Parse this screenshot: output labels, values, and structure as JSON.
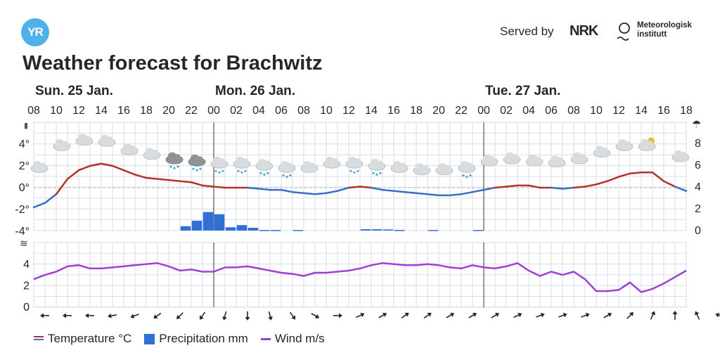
{
  "header": {
    "logo_text": "YR",
    "served_by": "Served by",
    "nrk_logo": "NRK",
    "met_line1": "Meteorologisk",
    "met_line2": "institutt",
    "title": "Weather forecast for Brachwitz"
  },
  "legend": {
    "temperature": "Temperature °C",
    "precipitation": "Precipitation mm",
    "wind": "Wind m/s"
  },
  "colors": {
    "temp_above": "#b5322c",
    "temp_below": "#3a6fc4",
    "precip": "#2f6fd6",
    "wind": "#a03fd6",
    "grid": "#d6dde2",
    "yr_blue": "#4fb1ea"
  },
  "chart_data": {
    "type": "line",
    "days": [
      {
        "label": "Sun. 25 Jan.",
        "start_hour": 8
      },
      {
        "label": "Mon. 26 Jan.",
        "start_hour": 24
      },
      {
        "label": "Tue. 27 Jan.",
        "start_hour": 48
      }
    ],
    "hour_tick_labels": [
      "08",
      "10",
      "12",
      "14",
      "16",
      "18",
      "20",
      "22",
      "00",
      "02",
      "04",
      "06",
      "08",
      "10",
      "12",
      "14",
      "16",
      "18",
      "20",
      "22",
      "00",
      "02",
      "04",
      "06",
      "08",
      "10",
      "12",
      "14",
      "16",
      "18"
    ],
    "x_hours_range": [
      8,
      66
    ],
    "temperature": {
      "unit": "°C",
      "ylim": [
        -4,
        10
      ],
      "y_ticks": [
        "4°",
        "2°",
        "0°",
        "-2°",
        "-4°"
      ],
      "points": [
        [
          8,
          -1.8
        ],
        [
          9,
          -1.4
        ],
        [
          10,
          -0.6
        ],
        [
          11,
          0.8
        ],
        [
          12,
          1.6
        ],
        [
          13,
          2.0
        ],
        [
          14,
          2.2
        ],
        [
          15,
          2.0
        ],
        [
          16,
          1.6
        ],
        [
          17,
          1.2
        ],
        [
          18,
          0.9
        ],
        [
          19,
          0.8
        ],
        [
          20,
          0.7
        ],
        [
          21,
          0.6
        ],
        [
          22,
          0.5
        ],
        [
          23,
          0.2
        ],
        [
          24,
          0.1
        ],
        [
          25,
          0.0
        ],
        [
          26,
          0.0
        ],
        [
          27,
          0.0
        ],
        [
          28,
          -0.1
        ],
        [
          29,
          -0.2
        ],
        [
          30,
          -0.2
        ],
        [
          31,
          -0.4
        ],
        [
          32,
          -0.5
        ],
        [
          33,
          -0.6
        ],
        [
          34,
          -0.5
        ],
        [
          35,
          -0.3
        ],
        [
          36,
          0.0
        ],
        [
          37,
          0.1
        ],
        [
          38,
          0.0
        ],
        [
          39,
          -0.2
        ],
        [
          40,
          -0.3
        ],
        [
          41,
          -0.4
        ],
        [
          42,
          -0.5
        ],
        [
          43,
          -0.6
        ],
        [
          44,
          -0.7
        ],
        [
          45,
          -0.7
        ],
        [
          46,
          -0.6
        ],
        [
          47,
          -0.4
        ],
        [
          48,
          -0.2
        ],
        [
          49,
          0.0
        ],
        [
          50,
          0.1
        ],
        [
          51,
          0.2
        ],
        [
          52,
          0.2
        ],
        [
          53,
          0.0
        ],
        [
          54,
          0.0
        ],
        [
          55,
          -0.1
        ],
        [
          56,
          0.0
        ],
        [
          57,
          0.1
        ],
        [
          58,
          0.3
        ],
        [
          59,
          0.6
        ],
        [
          60,
          1.0
        ],
        [
          61,
          1.3
        ],
        [
          62,
          1.4
        ],
        [
          63,
          1.4
        ],
        [
          64,
          0.6
        ],
        [
          65,
          0.1
        ],
        [
          66,
          -0.3
        ]
      ],
      "weather_icons": [
        {
          "hour": 8.5,
          "kind": "cloud",
          "temp": 1.0
        },
        {
          "hour": 10.5,
          "kind": "cloud",
          "temp": 3.0
        },
        {
          "hour": 12.5,
          "kind": "cloud",
          "temp": 3.5
        },
        {
          "hour": 14.5,
          "kind": "cloud",
          "temp": 3.4
        },
        {
          "hour": 16.5,
          "kind": "cloud",
          "temp": 2.6
        },
        {
          "hour": 18.5,
          "kind": "cloud",
          "temp": 2.2
        },
        {
          "hour": 20.5,
          "kind": "cloud-sleet",
          "temp": 1.8
        },
        {
          "hour": 22.5,
          "kind": "cloud-sleet",
          "temp": 1.6
        },
        {
          "hour": 24.5,
          "kind": "cloud-snow",
          "temp": 1.4
        },
        {
          "hour": 26.5,
          "kind": "cloud-snow",
          "temp": 1.4
        },
        {
          "hour": 28.5,
          "kind": "cloud-snow",
          "temp": 1.2
        },
        {
          "hour": 30.5,
          "kind": "cloud-snow",
          "temp": 1.0
        },
        {
          "hour": 32.5,
          "kind": "cloud",
          "temp": 1.0
        },
        {
          "hour": 34.5,
          "kind": "cloud",
          "temp": 1.4
        },
        {
          "hour": 36.5,
          "kind": "cloud-snow",
          "temp": 1.4
        },
        {
          "hour": 38.5,
          "kind": "cloud-snow",
          "temp": 1.2
        },
        {
          "hour": 40.5,
          "kind": "cloud",
          "temp": 1.0
        },
        {
          "hour": 42.5,
          "kind": "cloud",
          "temp": 0.8
        },
        {
          "hour": 44.5,
          "kind": "cloud",
          "temp": 0.8
        },
        {
          "hour": 46.5,
          "kind": "cloud-snow",
          "temp": 1.0
        },
        {
          "hour": 48.5,
          "kind": "cloud",
          "temp": 1.6
        },
        {
          "hour": 50.5,
          "kind": "cloud",
          "temp": 1.8
        },
        {
          "hour": 52.5,
          "kind": "cloud",
          "temp": 1.6
        },
        {
          "hour": 54.5,
          "kind": "cloud",
          "temp": 1.5
        },
        {
          "hour": 56.5,
          "kind": "cloud",
          "temp": 1.8
        },
        {
          "hour": 58.5,
          "kind": "cloud",
          "temp": 2.4
        },
        {
          "hour": 60.5,
          "kind": "cloud",
          "temp": 3.0
        },
        {
          "hour": 62.5,
          "kind": "cloud-sun",
          "temp": 3.0
        },
        {
          "hour": 65.5,
          "kind": "cloud",
          "temp": 2.0
        }
      ]
    },
    "precipitation": {
      "unit": "mm",
      "ylim": [
        0,
        8
      ],
      "y_ticks": [
        "8",
        "6",
        "4",
        "2",
        "0"
      ],
      "bars": [
        [
          21,
          0.4
        ],
        [
          22,
          0.9
        ],
        [
          23,
          1.7
        ],
        [
          24,
          1.5
        ],
        [
          25,
          0.3
        ],
        [
          26,
          0.5
        ],
        [
          27,
          0.25
        ],
        [
          28,
          0.05
        ],
        [
          29,
          0.05
        ],
        [
          31,
          0.05
        ],
        [
          37,
          0.12
        ],
        [
          38,
          0.12
        ],
        [
          39,
          0.1
        ],
        [
          40,
          0.05
        ],
        [
          43,
          0.05
        ],
        [
          47,
          0.05
        ]
      ]
    },
    "wind": {
      "unit": "m/s",
      "ylim": [
        0,
        6
      ],
      "y_ticks": [
        "4",
        "2",
        "0"
      ],
      "points": [
        [
          8,
          2.6
        ],
        [
          9,
          3.0
        ],
        [
          10,
          3.3
        ],
        [
          11,
          3.8
        ],
        [
          12,
          3.9
        ],
        [
          13,
          3.6
        ],
        [
          14,
          3.6
        ],
        [
          15,
          3.7
        ],
        [
          16,
          3.8
        ],
        [
          17,
          3.9
        ],
        [
          18,
          4.0
        ],
        [
          19,
          4.1
        ],
        [
          20,
          3.8
        ],
        [
          21,
          3.4
        ],
        [
          22,
          3.5
        ],
        [
          23,
          3.3
        ],
        [
          24,
          3.3
        ],
        [
          25,
          3.7
        ],
        [
          26,
          3.7
        ],
        [
          27,
          3.8
        ],
        [
          28,
          3.6
        ],
        [
          29,
          3.4
        ],
        [
          30,
          3.2
        ],
        [
          31,
          3.1
        ],
        [
          32,
          2.9
        ],
        [
          33,
          3.2
        ],
        [
          34,
          3.2
        ],
        [
          35,
          3.3
        ],
        [
          36,
          3.4
        ],
        [
          37,
          3.6
        ],
        [
          38,
          3.9
        ],
        [
          39,
          4.1
        ],
        [
          40,
          4.0
        ],
        [
          41,
          3.9
        ],
        [
          42,
          3.9
        ],
        [
          43,
          4.0
        ],
        [
          44,
          3.9
        ],
        [
          45,
          3.7
        ],
        [
          46,
          3.6
        ],
        [
          47,
          3.9
        ],
        [
          48,
          3.7
        ],
        [
          49,
          3.6
        ],
        [
          50,
          3.8
        ],
        [
          51,
          4.1
        ],
        [
          52,
          3.4
        ],
        [
          53,
          2.9
        ],
        [
          54,
          3.3
        ],
        [
          55,
          3.0
        ],
        [
          56,
          3.3
        ],
        [
          57,
          2.6
        ],
        [
          58,
          1.5
        ],
        [
          59,
          1.5
        ],
        [
          60,
          1.6
        ],
        [
          61,
          2.3
        ],
        [
          62,
          1.4
        ],
        [
          63,
          1.7
        ],
        [
          64,
          2.2
        ],
        [
          65,
          2.8
        ],
        [
          66,
          3.4
        ]
      ],
      "arrow_directions_deg": [
        270,
        270,
        270,
        260,
        250,
        235,
        225,
        215,
        195,
        180,
        165,
        145,
        120,
        90,
        65,
        60,
        55,
        55,
        60,
        60,
        60,
        65,
        70,
        70,
        70,
        60,
        45,
        25,
        0,
        335,
        290
      ]
    }
  }
}
